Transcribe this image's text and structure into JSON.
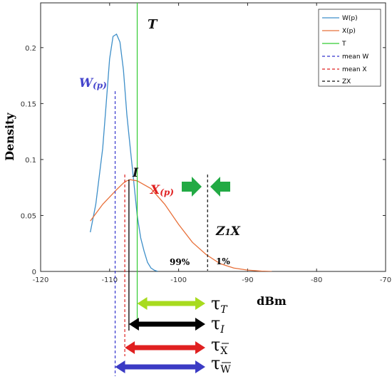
{
  "chart_data": {
    "type": "line",
    "xlabel": "dBm",
    "ylabel": "Density",
    "xlim": [
      -120,
      -70
    ],
    "ylim": [
      0,
      0.24
    ],
    "xticks": [
      -120,
      -110,
      -100,
      -90,
      -80,
      -70
    ],
    "xtick_labels": [
      "-120",
      "-110",
      "-100",
      "-90",
      "-80",
      "-70"
    ],
    "yticks": [
      0,
      0.05,
      0.1,
      0.15,
      0.2
    ],
    "ytick_labels": [
      "0",
      "0.05",
      "0.1",
      "0.15",
      "0.2"
    ],
    "grid": false,
    "legend_position": "top-right",
    "series": [
      {
        "name": "W(p)",
        "color": "#3E8FC9",
        "style": "solid",
        "x": [
          -112.8,
          -112,
          -111,
          -110.5,
          -110,
          -109.5,
          -109,
          -108.5,
          -108,
          -107.5,
          -107,
          -106.5,
          -106,
          -105.5,
          -105,
          -104.5,
          -104,
          -103.5,
          -103
        ],
        "y": [
          0.035,
          0.06,
          0.11,
          0.15,
          0.19,
          0.21,
          0.212,
          0.205,
          0.18,
          0.14,
          0.11,
          0.08,
          0.05,
          0.03,
          0.018,
          0.008,
          0.003,
          0.001,
          0
        ]
      },
      {
        "name": "X(p)",
        "color": "#E8703A",
        "style": "solid",
        "x": [
          -112.8,
          -111,
          -109,
          -108,
          -107.5,
          -107,
          -106,
          -104,
          -102,
          -100,
          -98,
          -96,
          -94,
          -92,
          -90,
          -88,
          -86.5
        ],
        "y": [
          0.045,
          0.06,
          0.073,
          0.079,
          0.081,
          0.082,
          0.081,
          0.074,
          0.06,
          0.042,
          0.026,
          0.015,
          0.007,
          0.003,
          0.0012,
          0.0003,
          0
        ]
      }
    ],
    "vlines": [
      {
        "name": "T",
        "x": -106,
        "color": "#33CC33",
        "style": "solid"
      },
      {
        "name": "mean W",
        "x": -109.2,
        "color": "#3333CC",
        "style": "dashed"
      },
      {
        "name": "mean X",
        "x": -107.8,
        "color": "#DD2222",
        "style": "dashed"
      },
      {
        "name": "ZX",
        "x": -95.8,
        "color": "#111111",
        "style": "dashed"
      }
    ],
    "annotations": {
      "T": "T",
      "W_label_main": "W",
      "W_label_sub": "(p)",
      "X_label_main": "X",
      "X_label_sub": "(p)",
      "I": "I",
      "Z1X_a": "Z",
      "Z1X_sub": "1",
      "Z1X_b": "X",
      "pct_99": "99%",
      "pct_1": "1%"
    },
    "tau_labels": {
      "tau_char": "τ",
      "T": "T",
      "I": "I",
      "X": "X",
      "W": "W"
    },
    "tau_arrows": [
      {
        "name": "tau-T",
        "x_start": -106,
        "color": "#A8DB1E"
      },
      {
        "name": "tau-I",
        "x_start": -107.2,
        "color": "#000000"
      },
      {
        "name": "tau-X",
        "x_start": -107.8,
        "color": "#E02020"
      },
      {
        "name": "tau-W",
        "x_start": -109.2,
        "color": "#3B3BC4"
      }
    ],
    "colors": {
      "W": "#3E8FC9",
      "X": "#E8703A",
      "T": "#33CC33",
      "meanW": "#3333CC",
      "meanX": "#DD2222",
      "ZX": "#111111",
      "w_label": "#4444CC",
      "x_label": "#E02020",
      "green_arrow": "#22AA44"
    }
  }
}
